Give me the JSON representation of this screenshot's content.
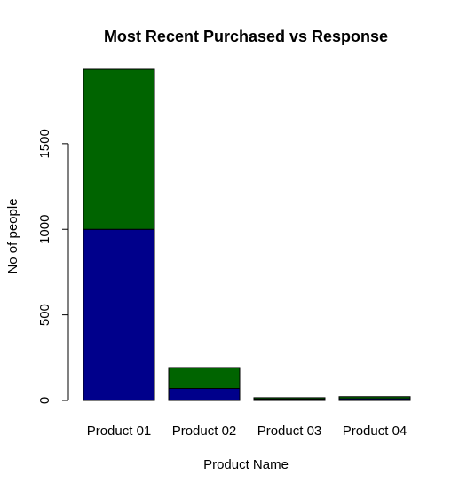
{
  "colors": {
    "segment_lower": "#00008B",
    "segment_upper": "#006400",
    "border": "#000000",
    "background": "#FFFFFF"
  },
  "chart_data": {
    "type": "bar",
    "stacked": true,
    "title": "Most Recent Purchased vs Response",
    "xlabel": "Product Name",
    "ylabel": "No of people",
    "categories": [
      "Product 01",
      "Product 02",
      "Product 03",
      "Product 04"
    ],
    "series": [
      {
        "values": [
          1000,
          70,
          8,
          10
        ]
      },
      {
        "values": [
          935,
          122,
          8,
          12
        ]
      }
    ],
    "yticks": [
      0,
      500,
      1000,
      1500
    ],
    "ylim": [
      0,
      2000
    ],
    "grid": false,
    "legend": "none"
  }
}
